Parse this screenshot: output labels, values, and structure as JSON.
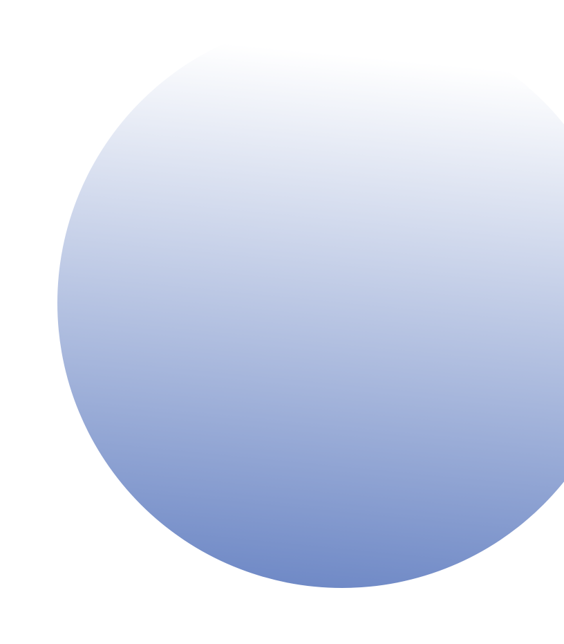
{
  "graphic": {
    "shape": "circle",
    "gradient": {
      "start_color": "#ffffff",
      "end_color": "#6f89c6"
    }
  },
  "background_color": "#ffffff"
}
